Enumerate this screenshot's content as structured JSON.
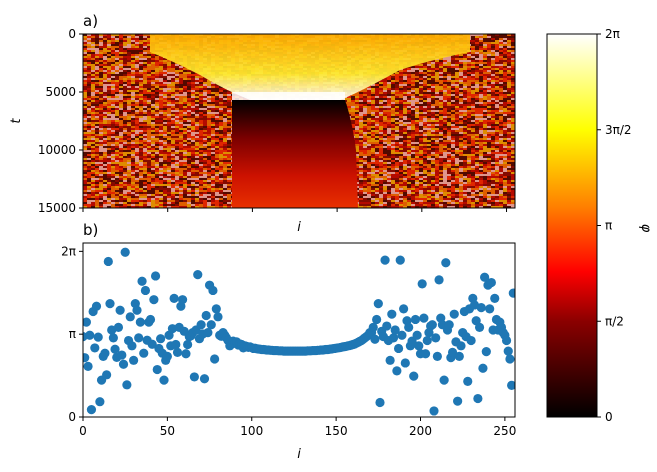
{
  "figure": {
    "panel_a_label": "a)",
    "panel_b_label": "b)"
  },
  "colors": {
    "scatter": "#1f77b4",
    "colormap": [
      "#000000",
      "#8b0000",
      "#ff0000",
      "#ff8000",
      "#ffff00",
      "#ffffff"
    ]
  },
  "chart_data": [
    {
      "type": "heatmap",
      "panel": "a)",
      "xlabel": "i",
      "ylabel": "t",
      "xlim": [
        0,
        255
      ],
      "ylim": [
        15000,
        0
      ],
      "yticks": [
        0,
        5000,
        10000,
        15000
      ],
      "yticklabels": [
        "0",
        "5000",
        "10000",
        "15000"
      ],
      "colormap": "hot",
      "colorbar": {
        "label": "φ",
        "range": [
          0,
          6.2832
        ],
        "ticks": [
          0,
          1.5708,
          3.1416,
          4.7124,
          6.2832
        ],
        "ticklabels": [
          "0",
          "π/2",
          "π",
          "3π/2",
          "2π"
        ]
      }
    },
    {
      "type": "scatter",
      "panel": "b)",
      "xlabel": "i",
      "ylabel": "",
      "xlim": [
        0,
        256
      ],
      "ylim": [
        0,
        6.6
      ],
      "xticks": [
        0,
        50,
        100,
        150,
        200,
        250
      ],
      "xticklabels": [
        "0",
        "50",
        "100",
        "150",
        "200",
        "250"
      ],
      "yticks": [
        0,
        3.1416,
        6.2832
      ],
      "yticklabels": [
        "0",
        "π",
        "2π"
      ],
      "x": [
        0,
        1,
        2,
        3,
        4,
        5,
        6,
        7,
        8,
        9,
        10,
        11,
        12,
        13,
        14,
        15,
        16,
        17,
        18,
        19,
        20,
        21,
        22,
        23,
        24,
        25,
        26,
        27,
        28,
        29,
        30,
        31,
        32,
        33,
        34,
        35,
        36,
        37,
        38,
        39,
        40,
        41,
        42,
        43,
        44,
        45,
        46,
        47,
        48,
        49,
        50,
        51,
        52,
        53,
        54,
        55,
        56,
        57,
        58,
        59,
        60,
        61,
        62,
        63,
        64,
        65,
        66,
        67,
        68,
        69,
        70,
        71,
        72,
        73,
        74,
        75,
        76,
        77,
        78,
        79,
        80,
        81,
        82,
        83,
        84,
        85,
        86,
        87,
        88,
        89,
        90,
        91,
        92,
        93,
        94,
        95,
        96,
        97,
        98,
        99,
        100,
        101,
        102,
        103,
        104,
        105,
        106,
        107,
        108,
        109,
        110,
        111,
        112,
        113,
        114,
        115,
        116,
        117,
        118,
        119,
        120,
        121,
        122,
        123,
        124,
        125,
        126,
        127,
        128,
        129,
        130,
        131,
        132,
        133,
        134,
        135,
        136,
        137,
        138,
        139,
        140,
        141,
        142,
        143,
        144,
        145,
        146,
        147,
        148,
        149,
        150,
        151,
        152,
        153,
        154,
        155,
        156,
        157,
        158,
        159,
        160,
        161,
        162,
        163,
        164,
        165,
        166,
        167,
        168,
        169,
        170,
        171,
        172,
        173,
        174,
        175,
        176,
        177,
        178,
        179,
        180,
        181,
        182,
        183,
        184,
        185,
        186,
        187,
        188,
        189,
        190,
        191,
        192,
        193,
        194,
        195,
        196,
        197,
        198,
        199,
        200,
        201,
        202,
        203,
        204,
        205,
        206,
        207,
        208,
        209,
        210,
        211,
        212,
        213,
        214,
        215,
        216,
        217,
        218,
        219,
        220,
        221,
        222,
        223,
        224,
        225,
        226,
        227,
        228,
        229,
        230,
        231,
        232,
        233,
        234,
        235,
        236,
        237,
        238,
        239,
        240,
        241,
        242,
        243,
        244,
        245,
        246,
        247,
        248,
        249,
        250,
        251,
        252,
        253,
        254,
        255
      ],
      "y": [
        3.05,
        2.25,
        3.6,
        1.92,
        3.1,
        0.28,
        4.0,
        2.62,
        4.2,
        3.03,
        0.58,
        1.4,
        2.3,
        2.42,
        1.6,
        5.9,
        4.3,
        3.3,
        3.0,
        2.57,
        2.26,
        3.4,
        4.05,
        2.35,
        2.0,
        6.25,
        1.22,
        2.9,
        3.8,
        2.7,
        2.15,
        4.3,
        4.05,
        3.0,
        3.6,
        5.15,
        2.42,
        4.8,
        2.91,
        3.6,
        3.7,
        2.76,
        4.45,
        5.35,
        1.8,
        2.6,
        2.97,
        2.42,
        1.4,
        2.15,
        2.3,
        3.1,
        2.7,
        3.35,
        4.5,
        2.75,
        2.45,
        3.4,
        4.2,
        4.45,
        3.25,
        2.4,
        2.75,
        3.05,
        3.08,
        3.2,
        1.52,
        3.3,
        5.4,
        2.97,
        3.5,
        3.15,
        1.45,
        3.85,
        3.2,
        5.0,
        3.5,
        4.8,
        2.2,
        4.1,
        3.8,
        3.1,
        3.06,
        3.2,
        3.1,
        3.0,
        2.9,
        2.7,
        2.76,
        2.88,
        2.8,
        2.85,
        2.73,
        2.77,
        2.75,
        2.62,
        2.7,
        2.68,
        2.64,
        2.66,
        2.63,
        2.6,
        2.61,
        2.59,
        2.58,
        2.57,
        2.56,
        2.56,
        2.55,
        2.54,
        2.54,
        2.53,
        2.53,
        2.52,
        2.52,
        2.52,
        2.51,
        2.51,
        2.51,
        2.5,
        2.5,
        2.5,
        2.5,
        2.5,
        2.5,
        2.5,
        2.5,
        2.5,
        2.5,
        2.5,
        2.5,
        2.5,
        2.5,
        2.51,
        2.51,
        2.51,
        2.52,
        2.52,
        2.52,
        2.53,
        2.53,
        2.54,
        2.54,
        2.55,
        2.56,
        2.56,
        2.57,
        2.58,
        2.59,
        2.6,
        2.61,
        2.62,
        2.63,
        2.64,
        2.66,
        2.67,
        2.68,
        2.7,
        2.71,
        2.73,
        2.75,
        2.77,
        2.8,
        2.83,
        2.87,
        2.9,
        2.95,
        3.0,
        3.05,
        3.1,
        3.2,
        3.2,
        3.4,
        2.95,
        3.7,
        4.3,
        0.55,
        3.25,
        3.05,
        5.95,
        3.45,
        2.9,
        2.15,
        3.9,
        3.0,
        3.3,
        1.75,
        2.6,
        5.95,
        3.1,
        4.1,
        2.05,
        3.65,
        3.4,
        2.7,
        2.88,
        1.55,
        3.7,
        3.1,
        2.7,
        2.4,
        5.05,
        3.75,
        2.4,
        2.9,
        3.2,
        3.45,
        3.5,
        0.23,
        3.0,
        2.3,
        5.2,
        3.75,
        3.5,
        1.4,
        5.85,
        3.3,
        3.5,
        2.25,
        2.45,
        3.9,
        2.85,
        0.6,
        2.3,
        2.7,
        3.2,
        4.0,
        3.05,
        1.35,
        4.1,
        2.9,
        4.5,
        4.25,
        3.65,
        0.7,
        3.4,
        4.15,
        1.85,
        5.3,
        2.48,
        5.0,
        4.1,
        5.1,
        3.3,
        4.5,
        3.7,
        3.3,
        3.6,
        3.4,
        3.2,
        3.1,
        2.9,
        2.5,
        2.2,
        1.2,
        4.7
      ]
    }
  ]
}
